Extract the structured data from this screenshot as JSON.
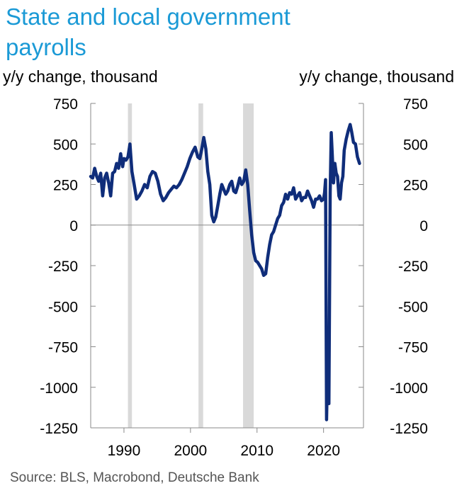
{
  "chart_data": {
    "type": "line",
    "title": "State and local government payrolls",
    "y_unit_left": "y/y change, thousand",
    "y_unit_right": "y/y change, thousand",
    "ylim": [
      -1250,
      750
    ],
    "y_ticks": [
      750,
      500,
      250,
      0,
      -250,
      -500,
      -750,
      -1000,
      -1250
    ],
    "xlim": [
      1985,
      2026
    ],
    "x_ticks": [
      1990,
      2000,
      2010,
      2020
    ],
    "grid": false,
    "zero_line": true,
    "recessions": [
      [
        1990.6,
        1991.2
      ],
      [
        2001.2,
        2001.9
      ],
      [
        2007.9,
        2009.5
      ]
    ],
    "series": [
      {
        "color": "#0f2d7a",
        "x": [
          1985.0,
          1985.3,
          1985.6,
          1985.9,
          1986.2,
          1986.5,
          1986.8,
          1987.1,
          1987.4,
          1987.7,
          1988.0,
          1988.3,
          1988.6,
          1988.9,
          1989.2,
          1989.5,
          1989.8,
          1990.0,
          1990.3,
          1990.6,
          1990.9,
          1991.2,
          1991.5,
          1991.9,
          1992.3,
          1992.7,
          1993.1,
          1993.5,
          1993.9,
          1994.3,
          1994.7,
          1995.1,
          1995.5,
          1995.9,
          1996.3,
          1996.7,
          1997.1,
          1997.5,
          1997.9,
          1998.3,
          1998.7,
          1999.1,
          1999.5,
          1999.9,
          2000.3,
          2000.7,
          2001.1,
          2001.4,
          2001.7,
          2002.0,
          2002.3,
          2002.6,
          2002.9,
          2003.2,
          2003.5,
          2003.8,
          2004.1,
          2004.4,
          2004.7,
          2005.0,
          2005.3,
          2005.6,
          2005.9,
          2006.2,
          2006.5,
          2006.8,
          2007.1,
          2007.4,
          2007.7,
          2008.0,
          2008.3,
          2008.6,
          2008.9,
          2009.2,
          2009.5,
          2009.8,
          2010.1,
          2010.4,
          2010.7,
          2011.0,
          2011.3,
          2011.6,
          2011.9,
          2012.2,
          2012.5,
          2012.8,
          2013.1,
          2013.4,
          2013.7,
          2014.0,
          2014.3,
          2014.6,
          2014.9,
          2015.2,
          2015.5,
          2015.8,
          2016.1,
          2016.4,
          2016.7,
          2017.0,
          2017.3,
          2017.6,
          2017.9,
          2018.2,
          2018.5,
          2018.8,
          2019.1,
          2019.4,
          2019.7,
          2020.0,
          2020.15,
          2020.3,
          2020.45,
          2020.6,
          2020.8,
          2021.0,
          2021.15,
          2021.3,
          2021.5,
          2021.7,
          2021.9,
          2022.1,
          2022.3,
          2022.5,
          2022.7,
          2022.9,
          2023.1,
          2023.4,
          2023.7,
          2024.0,
          2024.2,
          2024.5,
          2024.8,
          2025.1,
          2025.4
        ],
        "y": [
          300,
          290,
          350,
          300,
          270,
          320,
          180,
          290,
          320,
          260,
          180,
          320,
          330,
          380,
          350,
          440,
          360,
          410,
          400,
          420,
          500,
          330,
          260,
          160,
          180,
          210,
          250,
          230,
          300,
          330,
          320,
          270,
          190,
          150,
          170,
          200,
          220,
          240,
          230,
          250,
          280,
          320,
          360,
          410,
          450,
          480,
          420,
          410,
          470,
          540,
          470,
          330,
          250,
          60,
          20,
          50,
          120,
          190,
          250,
          220,
          190,
          210,
          250,
          270,
          210,
          200,
          240,
          290,
          250,
          270,
          340,
          250,
          90,
          -60,
          -170,
          -220,
          -230,
          -250,
          -270,
          -310,
          -300,
          -200,
          -120,
          -60,
          -40,
          0,
          40,
          60,
          120,
          140,
          190,
          160,
          200,
          190,
          230,
          160,
          180,
          200,
          150,
          170,
          170,
          210,
          180,
          150,
          110,
          160,
          160,
          180,
          150,
          160,
          200,
          280,
          -1200,
          -880,
          -1100,
          200,
          570,
          440,
          260,
          380,
          320,
          300,
          180,
          160,
          260,
          300,
          460,
          530,
          580,
          620,
          580,
          510,
          500,
          420,
          380
        ]
      }
    ],
    "source": "Source: BLS, Macrobond, Deutsche Bank"
  }
}
